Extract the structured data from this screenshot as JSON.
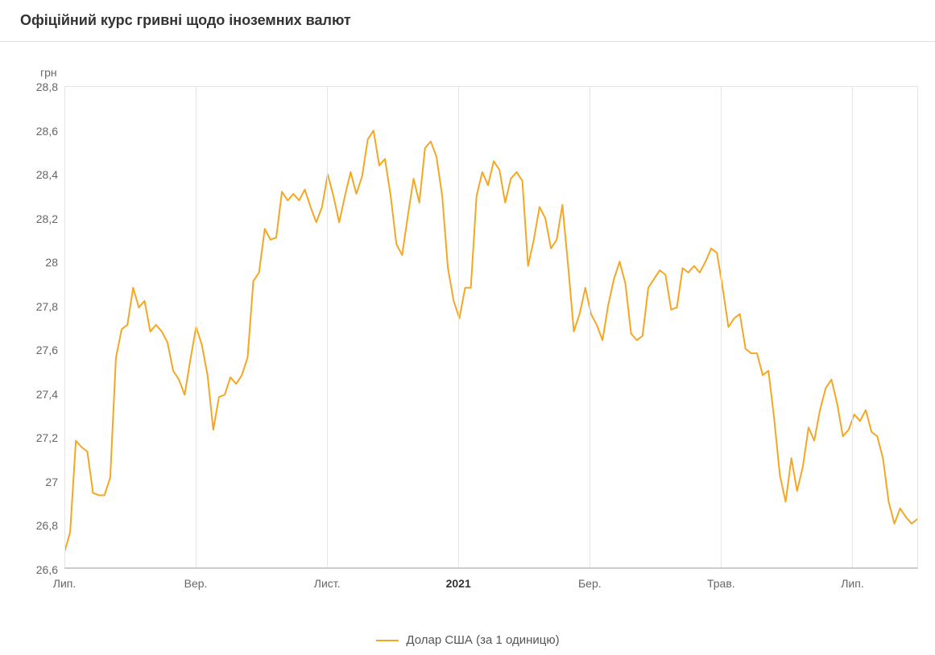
{
  "header": {
    "title": "Офіційний курс гривні щодо іноземних валют"
  },
  "chart": {
    "type": "line",
    "y_unit_label": "грн",
    "background_color": "#ffffff",
    "grid_color": "#e5e5e5",
    "axis_color": "#cccccc",
    "text_color": "#666666",
    "ylim": [
      26.6,
      28.8
    ],
    "ytick_step": 0.2,
    "yticks": [
      26.6,
      26.8,
      27.0,
      27.2,
      27.4,
      27.6,
      27.8,
      28.0,
      28.2,
      28.4,
      28.6,
      28.8
    ],
    "ytick_labels": [
      "26,6",
      "26,8",
      "27",
      "27,2",
      "27,4",
      "27,6",
      "27,8",
      "28",
      "28,2",
      "28,4",
      "28,6",
      "28,8"
    ],
    "xticks": [
      {
        "pos": 0.0,
        "label": "Лип.",
        "bold": false
      },
      {
        "pos": 0.1538,
        "label": "Вер.",
        "bold": false
      },
      {
        "pos": 0.3077,
        "label": "Лист.",
        "bold": false
      },
      {
        "pos": 0.4615,
        "label": "2021",
        "bold": true
      },
      {
        "pos": 0.6154,
        "label": "Бер.",
        "bold": false
      },
      {
        "pos": 0.7692,
        "label": "Трав.",
        "bold": false
      },
      {
        "pos": 0.9231,
        "label": "Лип.",
        "bold": false
      }
    ],
    "series": {
      "name": "Долар США (за 1 одиницю)",
      "color": "#f5a623",
      "line_width": 2,
      "values": [
        26.67,
        26.76,
        27.18,
        27.15,
        27.13,
        26.94,
        26.93,
        26.93,
        27.01,
        27.56,
        27.69,
        27.71,
        27.88,
        27.79,
        27.82,
        27.68,
        27.71,
        27.68,
        27.63,
        27.5,
        27.46,
        27.39,
        27.55,
        27.7,
        27.62,
        27.48,
        27.23,
        27.38,
        27.39,
        27.47,
        27.44,
        27.48,
        27.56,
        27.91,
        27.95,
        28.15,
        28.1,
        28.11,
        28.32,
        28.28,
        28.31,
        28.28,
        28.33,
        28.25,
        28.18,
        28.25,
        28.4,
        28.3,
        28.18,
        28.3,
        28.41,
        28.31,
        28.39,
        28.56,
        28.6,
        28.44,
        28.47,
        28.3,
        28.08,
        28.03,
        28.21,
        28.38,
        28.27,
        28.52,
        28.55,
        28.48,
        28.3,
        27.97,
        27.82,
        27.74,
        27.88,
        27.88,
        28.3,
        28.41,
        28.35,
        28.46,
        28.42,
        28.27,
        28.38,
        28.41,
        28.37,
        27.98,
        28.1,
        28.25,
        28.2,
        28.06,
        28.1,
        28.26,
        27.98,
        27.68,
        27.76,
        27.88,
        27.76,
        27.71,
        27.64,
        27.8,
        27.92,
        28.0,
        27.9,
        27.67,
        27.64,
        27.66,
        27.88,
        27.92,
        27.96,
        27.94,
        27.78,
        27.79,
        27.97,
        27.95,
        27.98,
        27.95,
        28.0,
        28.06,
        28.04,
        27.88,
        27.7,
        27.74,
        27.76,
        27.6,
        27.58,
        27.58,
        27.48,
        27.5,
        27.28,
        27.02,
        26.9,
        27.1,
        26.95,
        27.06,
        27.24,
        27.18,
        27.32,
        27.42,
        27.46,
        27.35,
        27.2,
        27.23,
        27.3,
        27.27,
        27.32,
        27.22,
        27.2,
        27.1,
        26.9,
        26.8,
        26.87,
        26.83,
        26.8,
        26.82
      ]
    },
    "legend": {
      "label": "Долар США (за 1 одиницю)"
    }
  }
}
